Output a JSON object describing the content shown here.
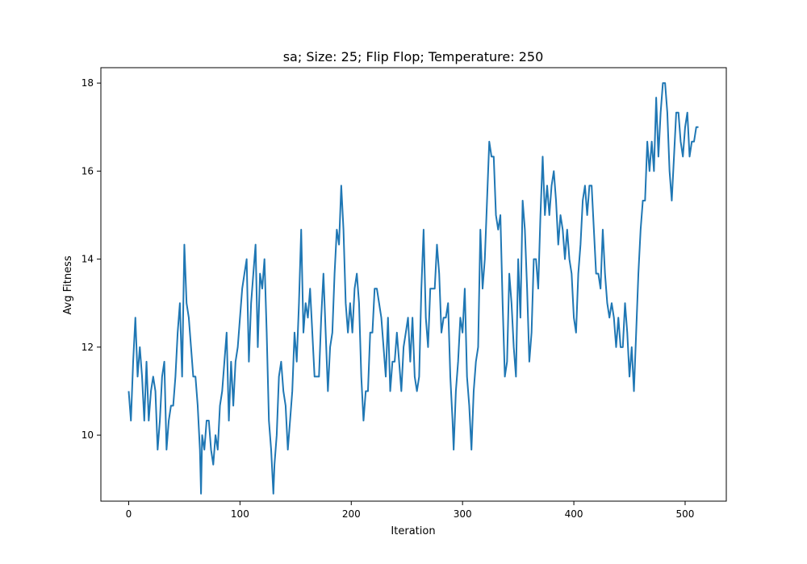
{
  "chart_data": {
    "type": "line",
    "title": "sa; Size: 25; Flip Flop; Temperature: 250",
    "xlabel": "Iteration",
    "ylabel": "Avg Fitness",
    "xlim": [
      -25,
      537
    ],
    "ylim": [
      8.5,
      18.35
    ],
    "xticks": [
      0,
      100,
      200,
      300,
      400,
      500
    ],
    "yticks": [
      10,
      12,
      14,
      16,
      18
    ],
    "grid": false,
    "series": [
      {
        "color": "#1f77b4",
        "points": [
          [
            0,
            11.0
          ],
          [
            2,
            10.33
          ],
          [
            4,
            11.67
          ],
          [
            6,
            12.67
          ],
          [
            8,
            11.33
          ],
          [
            10,
            12.0
          ],
          [
            12,
            11.33
          ],
          [
            14,
            10.33
          ],
          [
            16,
            11.67
          ],
          [
            18,
            10.33
          ],
          [
            20,
            11.0
          ],
          [
            22,
            11.33
          ],
          [
            24,
            11.0
          ],
          [
            26,
            9.67
          ],
          [
            28,
            10.33
          ],
          [
            30,
            11.33
          ],
          [
            32,
            11.67
          ],
          [
            34,
            9.67
          ],
          [
            36,
            10.33
          ],
          [
            38,
            10.67
          ],
          [
            40,
            10.67
          ],
          [
            42,
            11.33
          ],
          [
            44,
            12.33
          ],
          [
            46,
            13.0
          ],
          [
            48,
            11.33
          ],
          [
            50,
            14.33
          ],
          [
            52,
            13.0
          ],
          [
            54,
            12.67
          ],
          [
            56,
            12.0
          ],
          [
            58,
            11.33
          ],
          [
            60,
            11.33
          ],
          [
            62,
            10.67
          ],
          [
            64,
            9.67
          ],
          [
            65,
            8.67
          ],
          [
            66,
            10.0
          ],
          [
            68,
            9.67
          ],
          [
            70,
            10.33
          ],
          [
            72,
            10.33
          ],
          [
            74,
            9.67
          ],
          [
            76,
            9.33
          ],
          [
            78,
            10.0
          ],
          [
            80,
            9.67
          ],
          [
            82,
            10.67
          ],
          [
            84,
            11.0
          ],
          [
            86,
            11.67
          ],
          [
            88,
            12.33
          ],
          [
            90,
            10.33
          ],
          [
            92,
            11.67
          ],
          [
            94,
            10.67
          ],
          [
            96,
            11.67
          ],
          [
            98,
            12.0
          ],
          [
            100,
            12.67
          ],
          [
            102,
            13.33
          ],
          [
            104,
            13.67
          ],
          [
            106,
            14.0
          ],
          [
            108,
            11.67
          ],
          [
            110,
            13.0
          ],
          [
            112,
            13.67
          ],
          [
            114,
            14.33
          ],
          [
            116,
            12.0
          ],
          [
            118,
            13.67
          ],
          [
            120,
            13.33
          ],
          [
            122,
            14.0
          ],
          [
            124,
            12.33
          ],
          [
            126,
            10.33
          ],
          [
            128,
            9.67
          ],
          [
            130,
            8.67
          ],
          [
            131,
            9.33
          ],
          [
            133,
            10.0
          ],
          [
            135,
            11.33
          ],
          [
            137,
            11.67
          ],
          [
            139,
            11.0
          ],
          [
            141,
            10.67
          ],
          [
            143,
            9.67
          ],
          [
            145,
            10.33
          ],
          [
            147,
            11.0
          ],
          [
            149,
            12.33
          ],
          [
            151,
            11.67
          ],
          [
            153,
            13.0
          ],
          [
            155,
            14.67
          ],
          [
            157,
            12.33
          ],
          [
            159,
            13.0
          ],
          [
            161,
            12.67
          ],
          [
            163,
            13.33
          ],
          [
            165,
            12.33
          ],
          [
            167,
            11.33
          ],
          [
            169,
            11.33
          ],
          [
            171,
            11.33
          ],
          [
            173,
            12.67
          ],
          [
            175,
            13.67
          ],
          [
            177,
            12.33
          ],
          [
            179,
            11.0
          ],
          [
            181,
            12.0
          ],
          [
            183,
            12.33
          ],
          [
            185,
            13.67
          ],
          [
            187,
            14.67
          ],
          [
            189,
            14.33
          ],
          [
            191,
            15.67
          ],
          [
            193,
            14.67
          ],
          [
            195,
            13.0
          ],
          [
            197,
            12.33
          ],
          [
            199,
            13.0
          ],
          [
            201,
            12.33
          ],
          [
            203,
            13.33
          ],
          [
            205,
            13.67
          ],
          [
            207,
            13.0
          ],
          [
            209,
            11.33
          ],
          [
            211,
            10.33
          ],
          [
            213,
            11.0
          ],
          [
            215,
            11.0
          ],
          [
            217,
            12.33
          ],
          [
            219,
            12.33
          ],
          [
            221,
            13.33
          ],
          [
            223,
            13.33
          ],
          [
            225,
            13.0
          ],
          [
            227,
            12.67
          ],
          [
            229,
            12.0
          ],
          [
            231,
            11.33
          ],
          [
            233,
            12.67
          ],
          [
            235,
            11.0
          ],
          [
            237,
            11.67
          ],
          [
            239,
            11.67
          ],
          [
            241,
            12.33
          ],
          [
            243,
            11.67
          ],
          [
            245,
            11.0
          ],
          [
            247,
            12.0
          ],
          [
            249,
            12.33
          ],
          [
            251,
            12.67
          ],
          [
            253,
            11.67
          ],
          [
            255,
            12.67
          ],
          [
            257,
            11.33
          ],
          [
            259,
            11.0
          ],
          [
            261,
            11.33
          ],
          [
            263,
            13.33
          ],
          [
            265,
            14.67
          ],
          [
            267,
            12.67
          ],
          [
            269,
            12.0
          ],
          [
            271,
            13.33
          ],
          [
            273,
            13.33
          ],
          [
            275,
            13.33
          ],
          [
            277,
            14.33
          ],
          [
            279,
            13.67
          ],
          [
            281,
            12.33
          ],
          [
            283,
            12.67
          ],
          [
            285,
            12.67
          ],
          [
            287,
            13.0
          ],
          [
            289,
            11.33
          ],
          [
            291,
            10.33
          ],
          [
            292,
            9.67
          ],
          [
            294,
            11.0
          ],
          [
            296,
            11.67
          ],
          [
            298,
            12.67
          ],
          [
            300,
            12.33
          ],
          [
            302,
            13.33
          ],
          [
            304,
            11.33
          ],
          [
            306,
            10.67
          ],
          [
            308,
            9.67
          ],
          [
            310,
            11.0
          ],
          [
            312,
            11.67
          ],
          [
            314,
            12.0
          ],
          [
            316,
            14.67
          ],
          [
            318,
            13.33
          ],
          [
            320,
            14.0
          ],
          [
            322,
            15.33
          ],
          [
            324,
            16.67
          ],
          [
            326,
            16.33
          ],
          [
            328,
            16.33
          ],
          [
            330,
            15.0
          ],
          [
            332,
            14.67
          ],
          [
            334,
            15.0
          ],
          [
            336,
            13.0
          ],
          [
            338,
            11.33
          ],
          [
            340,
            11.67
          ],
          [
            342,
            13.67
          ],
          [
            344,
            13.0
          ],
          [
            346,
            12.0
          ],
          [
            348,
            11.33
          ],
          [
            350,
            14.0
          ],
          [
            352,
            12.67
          ],
          [
            354,
            15.33
          ],
          [
            356,
            14.67
          ],
          [
            358,
            13.33
          ],
          [
            360,
            11.67
          ],
          [
            362,
            12.33
          ],
          [
            364,
            14.0
          ],
          [
            366,
            14.0
          ],
          [
            368,
            13.33
          ],
          [
            370,
            15.0
          ],
          [
            372,
            16.33
          ],
          [
            374,
            15.0
          ],
          [
            376,
            15.67
          ],
          [
            378,
            15.0
          ],
          [
            380,
            15.67
          ],
          [
            382,
            16.0
          ],
          [
            384,
            15.33
          ],
          [
            386,
            14.33
          ],
          [
            388,
            15.0
          ],
          [
            390,
            14.67
          ],
          [
            392,
            14.0
          ],
          [
            394,
            14.67
          ],
          [
            396,
            14.0
          ],
          [
            398,
            13.67
          ],
          [
            400,
            12.67
          ],
          [
            402,
            12.33
          ],
          [
            404,
            13.67
          ],
          [
            406,
            14.33
          ],
          [
            408,
            15.33
          ],
          [
            410,
            15.67
          ],
          [
            412,
            15.0
          ],
          [
            414,
            15.67
          ],
          [
            416,
            15.67
          ],
          [
            418,
            14.67
          ],
          [
            420,
            13.67
          ],
          [
            422,
            13.67
          ],
          [
            424,
            13.33
          ],
          [
            426,
            14.67
          ],
          [
            428,
            13.67
          ],
          [
            430,
            13.0
          ],
          [
            432,
            12.67
          ],
          [
            434,
            13.0
          ],
          [
            436,
            12.67
          ],
          [
            438,
            12.0
          ],
          [
            440,
            12.67
          ],
          [
            442,
            12.0
          ],
          [
            444,
            12.0
          ],
          [
            446,
            13.0
          ],
          [
            448,
            12.33
          ],
          [
            450,
            11.33
          ],
          [
            452,
            12.0
          ],
          [
            454,
            11.0
          ],
          [
            456,
            12.33
          ],
          [
            458,
            13.67
          ],
          [
            460,
            14.67
          ],
          [
            462,
            15.33
          ],
          [
            464,
            15.33
          ],
          [
            466,
            16.67
          ],
          [
            468,
            16.0
          ],
          [
            470,
            16.67
          ],
          [
            472,
            16.0
          ],
          [
            474,
            17.67
          ],
          [
            476,
            16.33
          ],
          [
            478,
            17.33
          ],
          [
            480,
            18.0
          ],
          [
            482,
            18.0
          ],
          [
            484,
            17.33
          ],
          [
            486,
            16.0
          ],
          [
            488,
            15.33
          ],
          [
            490,
            16.33
          ],
          [
            492,
            17.33
          ],
          [
            494,
            17.33
          ],
          [
            496,
            16.67
          ],
          [
            498,
            16.33
          ],
          [
            500,
            17.0
          ],
          [
            502,
            17.33
          ],
          [
            504,
            16.33
          ],
          [
            506,
            16.67
          ],
          [
            508,
            16.67
          ],
          [
            510,
            17.0
          ],
          [
            512,
            17.0
          ]
        ]
      }
    ]
  }
}
